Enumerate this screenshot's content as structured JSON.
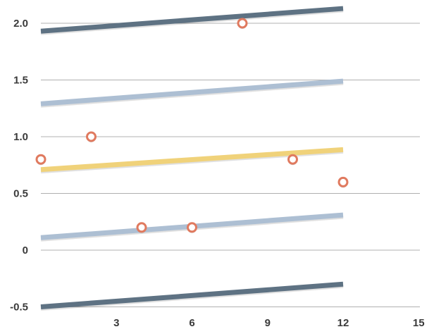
{
  "chart_data": {
    "type": "scatter",
    "title": "",
    "xlabel": "",
    "ylabel": "",
    "xlim": [
      -0.5,
      15
    ],
    "ylim": [
      -0.5,
      2.1
    ],
    "x_ticks": [
      {
        "value": 3,
        "label": "3"
      },
      {
        "value": 6,
        "label": "6"
      },
      {
        "value": 9,
        "label": "9"
      },
      {
        "value": 12,
        "label": "12"
      },
      {
        "value": 15,
        "label": "15"
      }
    ],
    "y_ticks": [
      {
        "value": -0.5,
        "label": "-0.5"
      },
      {
        "value": 0,
        "label": "0"
      },
      {
        "value": 0.5,
        "label": "0.5"
      },
      {
        "value": 1.0,
        "label": "1.0"
      },
      {
        "value": 1.5,
        "label": "1.5"
      },
      {
        "value": 2.0,
        "label": "2.0"
      }
    ],
    "grid": true,
    "series": [
      {
        "type": "scatter",
        "color": "#e07a5f",
        "points": [
          {
            "x": 0,
            "y": 0.8
          },
          {
            "x": 2,
            "y": 1.0
          },
          {
            "x": 4,
            "y": 0.2
          },
          {
            "x": 6,
            "y": 0.2
          },
          {
            "x": 8,
            "y": 2.0
          },
          {
            "x": 10,
            "y": 0.8
          },
          {
            "x": 12,
            "y": 0.6
          }
        ]
      },
      {
        "type": "line",
        "color": "#f0d27a",
        "points": [
          {
            "x": 0,
            "y": 0.71
          },
          {
            "x": 12,
            "y": 0.886
          }
        ]
      },
      {
        "type": "line",
        "color": "#adbfd3",
        "points": [
          {
            "x": 0,
            "y": 1.29
          },
          {
            "x": 12,
            "y": 1.49
          }
        ]
      },
      {
        "type": "line",
        "color": "#adbfd3",
        "points": [
          {
            "x": 0,
            "y": 0.11
          },
          {
            "x": 12,
            "y": 0.31
          }
        ]
      },
      {
        "type": "line",
        "color": "#5e7283",
        "points": [
          {
            "x": 0,
            "y": 1.93
          },
          {
            "x": 12,
            "y": 2.13
          }
        ]
      },
      {
        "type": "line",
        "color": "#5e7283",
        "points": [
          {
            "x": 0,
            "y": -0.5
          },
          {
            "x": 12,
            "y": -0.3
          }
        ]
      }
    ]
  }
}
